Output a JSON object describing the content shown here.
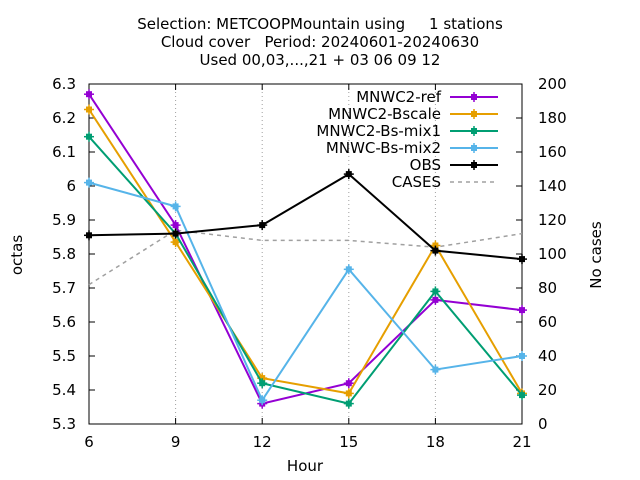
{
  "title": {
    "line1": "Selection: METCOOPMountain using     1 stations",
    "line2": "Cloud cover   Period: 20240601-20240630",
    "line3": "Used 00,03,...,21 + 03 06 09 12"
  },
  "chart_data": {
    "type": "line",
    "xlabel": "Hour",
    "ylabel": "octas",
    "y2label": "No cases",
    "x": [
      6,
      9,
      12,
      15,
      18,
      21
    ],
    "xticks": [
      "6",
      "9",
      "12",
      "15",
      "18",
      "21"
    ],
    "ylim": [
      5.3,
      6.3
    ],
    "yticks": [
      "5.3",
      "5.4",
      "5.5",
      "5.6",
      "5.7",
      "5.8",
      "5.9",
      "6",
      "6.1",
      "6.2",
      "6.3"
    ],
    "y2lim": [
      0,
      200
    ],
    "y2ticks": [
      "0",
      "20",
      "40",
      "60",
      "80",
      "100",
      "120",
      "140",
      "160",
      "180",
      "200"
    ],
    "grid": true,
    "legend_position": "top-right",
    "series": [
      {
        "name": "MNWC2-ref",
        "color": "#9400d3",
        "axis": "left",
        "marker": "square-cross",
        "values": [
          6.27,
          5.885,
          5.36,
          5.42,
          5.665,
          5.635
        ]
      },
      {
        "name": "MNWC2-Bscale",
        "color": "#e69f00",
        "axis": "left",
        "marker": "square-cross",
        "values": [
          6.225,
          5.835,
          5.435,
          5.39,
          5.825,
          5.39
        ]
      },
      {
        "name": "MNWC2-Bs-mix1",
        "color": "#009e73",
        "axis": "left",
        "marker": "square-cross",
        "values": [
          6.145,
          5.86,
          5.42,
          5.36,
          5.69,
          5.385
        ]
      },
      {
        "name": "MNWC-Bs-mix2",
        "color": "#56b4e9",
        "axis": "left",
        "marker": "square-cross",
        "values": [
          6.01,
          5.94,
          5.37,
          5.755,
          5.46,
          5.5
        ]
      },
      {
        "name": "OBS",
        "color": "#000000",
        "axis": "left",
        "marker": "square-cross",
        "values": [
          5.855,
          5.86,
          5.885,
          6.035,
          5.81,
          5.785
        ]
      },
      {
        "name": "CASES",
        "color": "#a0a0a0",
        "axis": "right",
        "marker": "none",
        "dashed": true,
        "values": [
          82,
          114,
          108,
          108,
          104,
          112
        ]
      }
    ]
  }
}
